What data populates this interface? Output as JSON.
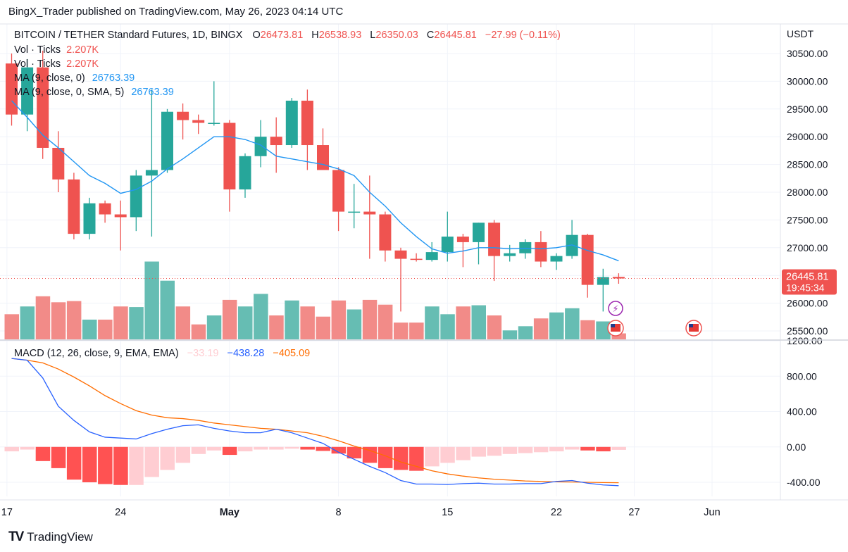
{
  "header": "BingX_Trader published on TradingView.com, May 26, 2023 04:14 UTC",
  "footer": "TradingView",
  "legend": {
    "symbol": "BITCOIN / TETHER Standard Futures, 1D, BINGX",
    "o_label": "O",
    "o": "26473.81",
    "h_label": "H",
    "h": "26538.93",
    "l_label": "L",
    "l": "26350.03",
    "c_label": "C",
    "c": "26445.81",
    "change": "−27.99 (−0.11%)",
    "vol1_label": "Vol · Ticks",
    "vol1": "2.207K",
    "vol2_label": "Vol · Ticks",
    "vol2": "2.207K",
    "ma1_label": "MA (9, close, 0)",
    "ma1": "26763.39",
    "ma2_label": "MA (9, close, 0, SMA, 5)",
    "ma2": "26763.39",
    "macd_label": "MACD (12, 26, close, 9, EMA, EMA)",
    "macd_hist": "−33.19",
    "macd_line": "−438.28",
    "macd_signal": "−405.09"
  },
  "price_badge": {
    "price": "26445.81",
    "countdown": "19:45:34"
  },
  "colors": {
    "up": "#26a69a",
    "down": "#ef5350",
    "ma": "#2196f3",
    "macd": "#2962ff",
    "signal": "#ff6d00",
    "hist_pos_light": "#ffcdd2"
  },
  "chart_data": [
    {
      "type": "candlestick",
      "title": "BITCOIN / TETHER Standard Futures, 1D, BINGX",
      "y_unit": "USDT",
      "yticks": [
        25500,
        26000,
        26500,
        27000,
        27500,
        28000,
        28500,
        29000,
        29500,
        30000,
        30500
      ],
      "ylim": [
        25350,
        30850
      ],
      "xticks": [
        "17",
        "24",
        "May",
        "8",
        "15",
        "22",
        "27",
        "Jun"
      ],
      "dates": [
        "Apr 17",
        "Apr 18",
        "Apr 19",
        "Apr 20",
        "Apr 21",
        "Apr 22",
        "Apr 23",
        "Apr 24",
        "Apr 25",
        "Apr 26",
        "Apr 27",
        "Apr 28",
        "Apr 29",
        "Apr 30",
        "May 1",
        "May 2",
        "May 3",
        "May 4",
        "May 5",
        "May 6",
        "May 7",
        "May 8",
        "May 9",
        "May 10",
        "May 11",
        "May 12",
        "May 13",
        "May 14",
        "May 15",
        "May 16",
        "May 17",
        "May 18",
        "May 19",
        "May 20",
        "May 21",
        "May 22",
        "May 23",
        "May 24",
        "May 25",
        "May 26"
      ],
      "ohlc": [
        [
          30320,
          30500,
          29200,
          29400
        ],
        [
          29400,
          30400,
          29100,
          30250
        ],
        [
          30250,
          30550,
          28600,
          28800
        ],
        [
          28800,
          29100,
          28000,
          28230
        ],
        [
          28230,
          28350,
          27150,
          27250
        ],
        [
          27250,
          27900,
          27150,
          27800
        ],
        [
          27800,
          27850,
          27450,
          27600
        ],
        [
          27600,
          27850,
          26950,
          27550
        ],
        [
          27550,
          28400,
          27300,
          28300
        ],
        [
          28300,
          29850,
          27200,
          28400
        ],
        [
          28400,
          29500,
          28350,
          29450
        ],
        [
          29450,
          29600,
          28950,
          29300
        ],
        [
          29300,
          29400,
          29050,
          29250
        ],
        [
          29250,
          30000,
          29200,
          29250
        ],
        [
          29250,
          29300,
          27650,
          28050
        ],
        [
          28050,
          28700,
          27900,
          28650
        ],
        [
          28650,
          29300,
          28450,
          29000
        ],
        [
          29000,
          29350,
          28350,
          28850
        ],
        [
          28850,
          29700,
          28800,
          29650
        ],
        [
          29650,
          29850,
          28400,
          28850
        ],
        [
          28850,
          29150,
          28400,
          28400
        ],
        [
          28400,
          28450,
          27300,
          27650
        ],
        [
          27650,
          28150,
          27350,
          27650
        ],
        [
          27650,
          28300,
          26800,
          27600
        ],
        [
          27600,
          27650,
          26750,
          26950
        ],
        [
          26950,
          27000,
          25850,
          26800
        ],
        [
          26800,
          26900,
          26750,
          26780
        ],
        [
          26780,
          27100,
          26750,
          26920
        ],
        [
          26920,
          27650,
          26750,
          27200
        ],
        [
          27200,
          27250,
          26650,
          27100
        ],
        [
          27100,
          27450,
          26700,
          27450
        ],
        [
          27450,
          27500,
          26400,
          26850
        ],
        [
          26850,
          27050,
          26750,
          26900
        ],
        [
          26900,
          27150,
          26800,
          27100
        ],
        [
          27100,
          27300,
          26650,
          26750
        ],
        [
          26750,
          26900,
          26600,
          26850
        ],
        [
          26850,
          27500,
          26800,
          27230
        ],
        [
          27230,
          27250,
          26100,
          26330
        ],
        [
          26330,
          26620,
          25850,
          26470
        ],
        [
          26473.81,
          26538.93,
          26350.03,
          26445.81
        ]
      ],
      "volume_rel": [
        0.42,
        0.55,
        0.72,
        0.62,
        0.64,
        0.33,
        0.33,
        0.55,
        0.54,
        1.3,
        0.98,
        0.55,
        0.25,
        0.4,
        0.66,
        0.55,
        0.76,
        0.4,
        0.65,
        0.55,
        0.38,
        0.65,
        0.5,
        0.66,
        0.58,
        0.28,
        0.28,
        0.55,
        0.42,
        0.55,
        0.57,
        0.4,
        0.15,
        0.22,
        0.35,
        0.45,
        0.52,
        0.32,
        0.3,
        0.1
      ],
      "ma9": [
        29650,
        29350,
        29030,
        28800,
        28550,
        28300,
        28160,
        27980,
        28050,
        28200,
        28420,
        28600,
        28800,
        29000,
        29000,
        28950,
        28850,
        28650,
        28600,
        28550,
        28500,
        28420,
        28300,
        28000,
        27750,
        27450,
        27200,
        26980,
        26900,
        26940,
        27000,
        27000,
        26980,
        26990,
        26980,
        27000,
        27050,
        26950,
        26870,
        26763.39
      ]
    },
    {
      "type": "bar",
      "title": "MACD (12, 26, close, 9, EMA, EMA)",
      "yticks": [
        -400,
        0,
        400,
        800,
        1200
      ],
      "ylim": [
        -500,
        1260
      ],
      "series": [
        {
          "name": "Histogram",
          "values": [
            -50,
            -30,
            -160,
            -240,
            -370,
            -400,
            -420,
            -430,
            -430,
            -340,
            -260,
            -180,
            -80,
            -40,
            -90,
            -50,
            -30,
            -30,
            -20,
            -30,
            -45,
            -75,
            -130,
            -180,
            -240,
            -260,
            -270,
            -220,
            -180,
            -150,
            -110,
            -100,
            -80,
            -70,
            -60,
            -50,
            -30,
            -40,
            -50,
            -33.19
          ]
        },
        {
          "name": "MACD",
          "values": [
            1000,
            980,
            780,
            460,
            300,
            170,
            110,
            100,
            90,
            150,
            200,
            240,
            250,
            210,
            180,
            160,
            160,
            200,
            160,
            100,
            40,
            -60,
            -140,
            -220,
            -290,
            -380,
            -420,
            -420,
            -425,
            -415,
            -410,
            -420,
            -420,
            -415,
            -415,
            -390,
            -380,
            -410,
            -430,
            -438.28
          ]
        },
        {
          "name": "Signal",
          "values": [
            1000,
            980,
            950,
            880,
            790,
            690,
            580,
            490,
            410,
            360,
            330,
            320,
            300,
            270,
            250,
            230,
            210,
            200,
            180,
            160,
            120,
            70,
            10,
            -40,
            -100,
            -170,
            -220,
            -270,
            -305,
            -330,
            -350,
            -365,
            -375,
            -385,
            -390,
            -395,
            -397,
            -400,
            -403,
            -405.09
          ]
        }
      ]
    }
  ]
}
